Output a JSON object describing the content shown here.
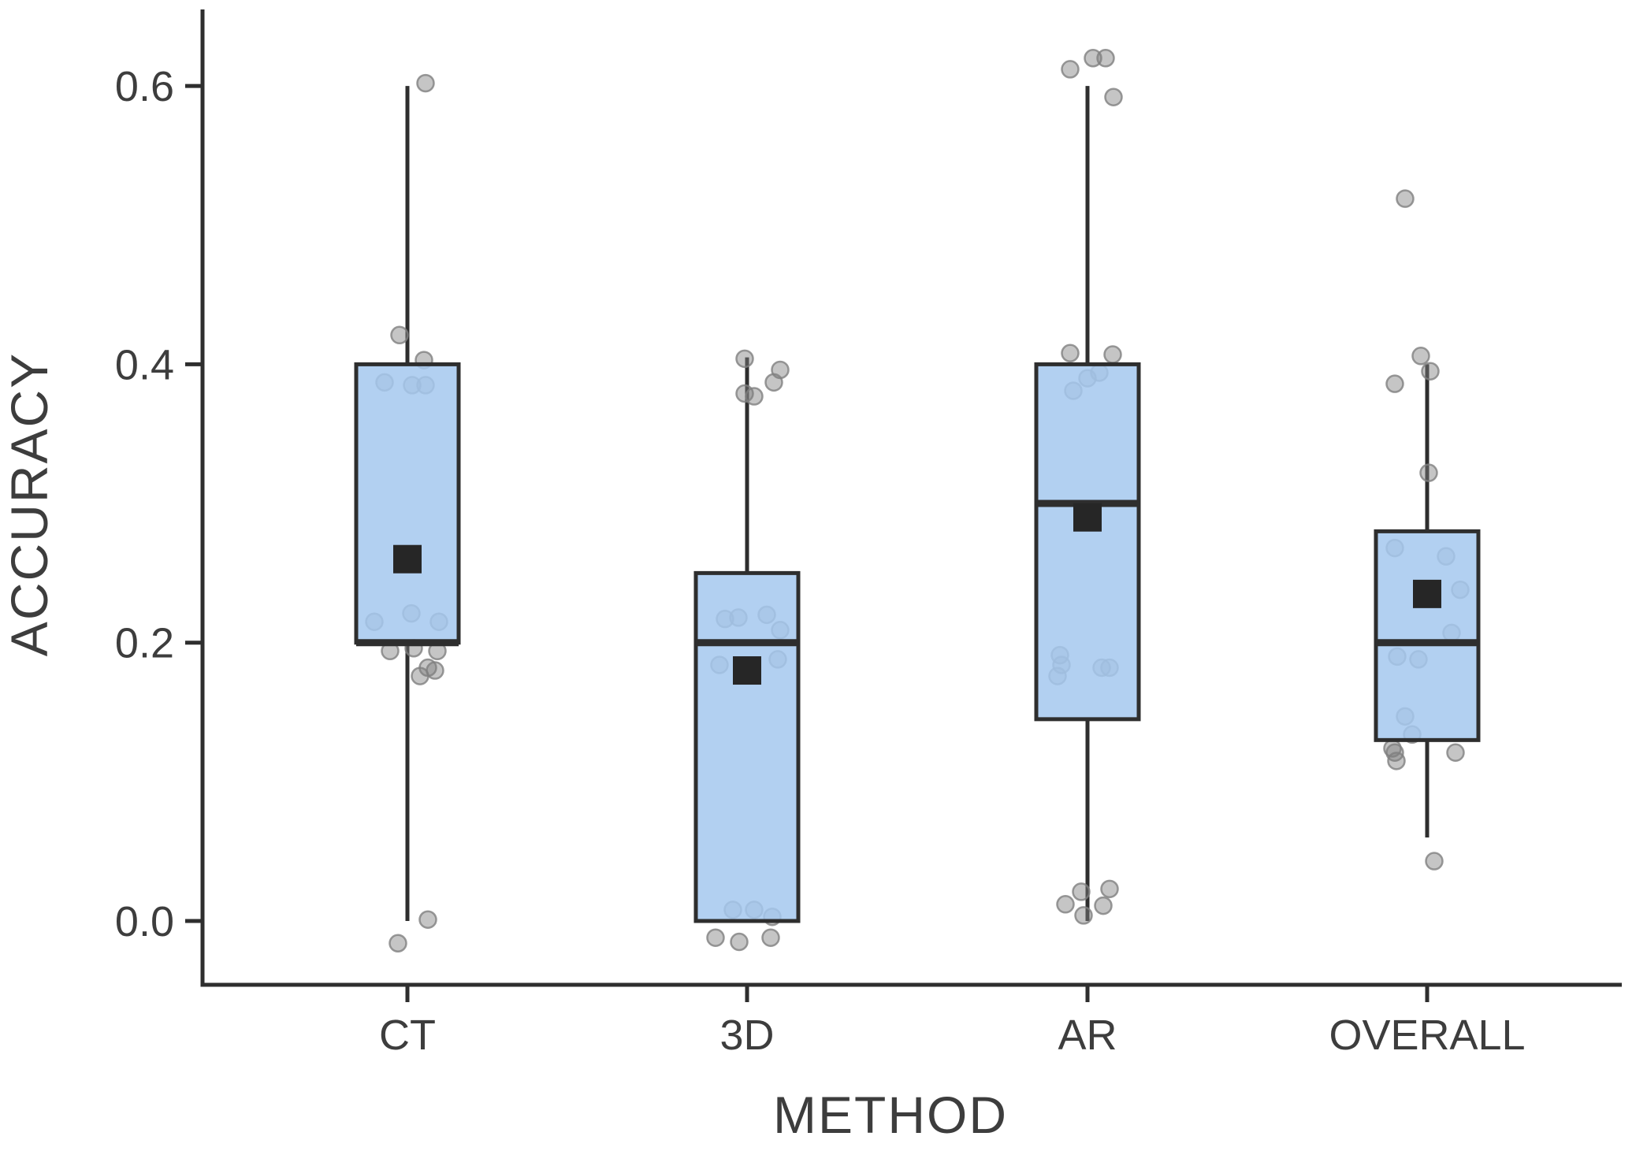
{
  "chart_data": {
    "type": "boxplot",
    "title": "",
    "xlabel": "METHOD",
    "ylabel": "ACCURACY",
    "categories": [
      "CT",
      "3D",
      "AR",
      "OVERALL"
    ],
    "y_tick_values": [
      0.0,
      0.2,
      0.4,
      0.6
    ],
    "y_tick_labels": [
      "0.0",
      "0.2",
      "0.4",
      "0.6"
    ],
    "ylim": [
      -0.046,
      0.655
    ],
    "grid": false,
    "legend_position": "none",
    "boxes": [
      {
        "category": "CT",
        "whisker_low": 0.0,
        "q1": 0.2,
        "median": 0.2,
        "q3": 0.4,
        "whisker_high": 0.6,
        "mean": 0.26
      },
      {
        "category": "3D",
        "whisker_low": 0.0,
        "q1": 0.0,
        "median": 0.2,
        "q3": 0.25,
        "whisker_high": 0.405,
        "mean": 0.18
      },
      {
        "category": "AR",
        "whisker_low": 0.0,
        "q1": 0.145,
        "median": 0.3,
        "q3": 0.4,
        "whisker_high": 0.6,
        "mean": 0.29
      },
      {
        "category": "OVERALL",
        "whisker_low": 0.06,
        "q1": 0.13,
        "median": 0.2,
        "q3": 0.28,
        "whisker_high": 0.4,
        "mean": 0.235
      }
    ],
    "jitter_points": [
      {
        "category": "CT",
        "points": [
          [
            23,
            0.602
          ],
          [
            -10,
            0.421
          ],
          [
            21,
            0.403
          ],
          [
            -29,
            0.387
          ],
          [
            6,
            0.385
          ],
          [
            23,
            0.385
          ],
          [
            5,
            0.221
          ],
          [
            -42,
            0.215
          ],
          [
            40,
            0.215
          ],
          [
            -22,
            0.194
          ],
          [
            8,
            0.196
          ],
          [
            38,
            0.194
          ],
          [
            26,
            0.182
          ],
          [
            16,
            0.176
          ],
          [
            35,
            0.18
          ],
          [
            26,
            0.001
          ],
          [
            -12,
            -0.016
          ]
        ]
      },
      {
        "category": "3D",
        "points": [
          [
            -3,
            0.404
          ],
          [
            42,
            0.396
          ],
          [
            34,
            0.387
          ],
          [
            -3,
            0.379
          ],
          [
            9,
            0.377
          ],
          [
            -28,
            0.217
          ],
          [
            -11,
            0.218
          ],
          [
            25,
            0.22
          ],
          [
            42,
            0.209
          ],
          [
            -35,
            0.184
          ],
          [
            39,
            0.188
          ],
          [
            -18,
            0.008
          ],
          [
            9,
            0.008
          ],
          [
            32,
            0.003
          ],
          [
            -40,
            -0.012
          ],
          [
            -10,
            -0.015
          ],
          [
            30,
            -0.012
          ]
        ]
      },
      {
        "category": "AR",
        "points": [
          [
            -22,
            0.612
          ],
          [
            7,
            0.62
          ],
          [
            23,
            0.62
          ],
          [
            33,
            0.592
          ],
          [
            -22,
            0.408
          ],
          [
            32,
            0.407
          ],
          [
            0,
            0.39
          ],
          [
            15,
            0.394
          ],
          [
            -18,
            0.381
          ],
          [
            -35,
            0.191
          ],
          [
            -33,
            0.184
          ],
          [
            -38,
            0.176
          ],
          [
            18,
            0.182
          ],
          [
            28,
            0.182
          ],
          [
            -28,
            0.012
          ],
          [
            -8,
            0.021
          ],
          [
            28,
            0.023
          ],
          [
            20,
            0.011
          ],
          [
            -5,
            0.004
          ]
        ]
      },
      {
        "category": "OVERALL",
        "points": [
          [
            -28,
            0.519
          ],
          [
            -8,
            0.406
          ],
          [
            4,
            0.395
          ],
          [
            -41,
            0.386
          ],
          [
            2,
            0.322
          ],
          [
            -41,
            0.268
          ],
          [
            24,
            0.262
          ],
          [
            42,
            0.238
          ],
          [
            31,
            0.207
          ],
          [
            -38,
            0.19
          ],
          [
            -11,
            0.188
          ],
          [
            -28,
            0.147
          ],
          [
            -19,
            0.134
          ],
          [
            -44,
            0.124
          ],
          [
            -41,
            0.121
          ],
          [
            36,
            0.121
          ],
          [
            -39,
            0.115
          ],
          [
            9,
            0.043
          ]
        ]
      }
    ],
    "colors": {
      "box_fill": "#A5C8EF",
      "box_border": "#2E2E2E",
      "median_line": "#2E2E2E",
      "mean_marker": "#262626",
      "jitter_point": "#7F7F7F",
      "axis_line": "#2E2E2E",
      "text": "#3D3D3D"
    }
  }
}
